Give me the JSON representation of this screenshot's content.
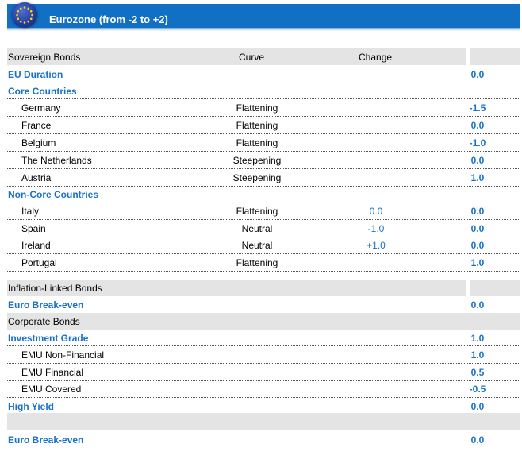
{
  "header": {
    "title": "Eurozone (from -2 to +2)"
  },
  "columns": {
    "label": "Sovereign Bonds",
    "curve": "Curve",
    "change": "Change"
  },
  "eu_duration": {
    "label": "EU Duration",
    "value": "0.0"
  },
  "core": {
    "title": "Core Countries",
    "rows": [
      {
        "name": "Germany",
        "curve": "Flattening",
        "change": "",
        "value": "-1.5"
      },
      {
        "name": "France",
        "curve": "Flattening",
        "change": "",
        "value": "0.0"
      },
      {
        "name": "Belgium",
        "curve": "Flattening",
        "change": "",
        "value": "-1.0"
      },
      {
        "name": "The  Netherlands",
        "curve": "Steepening",
        "change": "",
        "value": "0.0"
      },
      {
        "name": "Austria",
        "curve": "Steepening",
        "change": "",
        "value": "1.0"
      }
    ]
  },
  "noncore": {
    "title": "Non-Core  Countries",
    "rows": [
      {
        "name": "Italy",
        "curve": "Flattening",
        "change": "0.0",
        "value": "0.0"
      },
      {
        "name": "Spain",
        "curve": "Neutral",
        "change": "-1.0",
        "value": "0.0"
      },
      {
        "name": "Ireland",
        "curve": "Neutral",
        "change": "+1.0",
        "value": "0.0"
      },
      {
        "name": "Portugal",
        "curve": "Flattening",
        "change": "",
        "value": "1.0"
      }
    ]
  },
  "inflation": {
    "title": "Inflation-Linked Bonds",
    "breakeven_label": "Euro Break-even",
    "breakeven_value": "0.0"
  },
  "corporate": {
    "title": "Corporate Bonds",
    "ig_label": "Investment Grade",
    "ig_value": "1.0",
    "rows": [
      {
        "name": "EMU Non-Financial",
        "value": "1.0"
      },
      {
        "name": "EMU Financial",
        "value": "0.5"
      },
      {
        "name": "EMU Covered",
        "value": "-0.5"
      }
    ],
    "hy_label": "High Yield",
    "hy_value": "0.0"
  },
  "final": {
    "label": "Euro Break-even",
    "value": "0.0"
  },
  "colors": {
    "header": "#1170c3",
    "accent": "#1a72c8",
    "shade": "#e4e4e4"
  }
}
